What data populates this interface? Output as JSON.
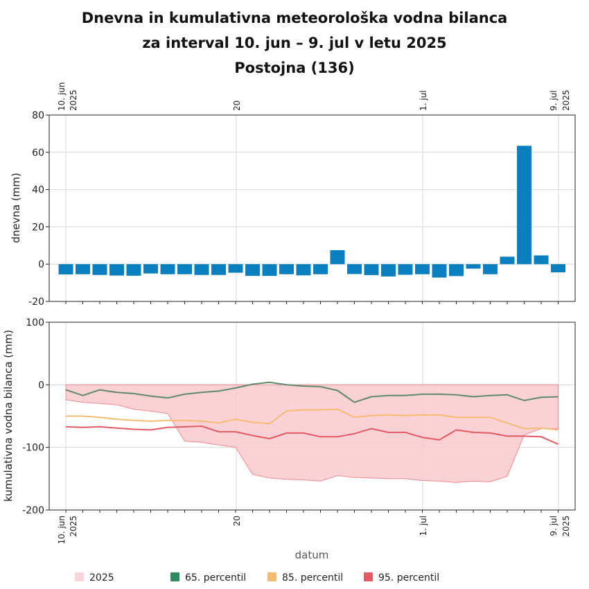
{
  "title": {
    "line1": "Dnevna in kumulativna meteorološka vodna bilanca",
    "line2": "za interval 10. jun – 9. jul v letu 2025",
    "line3": "Postojna (136)"
  },
  "colors": {
    "bar": "#0a7fbf",
    "band_fill": "#f9c9cd",
    "band_line": "#f08a92",
    "p65": "#5e8a6b",
    "p85": "#f6bb73",
    "p95": "#e45a62",
    "legend_2025": "#fbd5d9",
    "legend_p65": "#2e8b60"
  },
  "top_dates": {
    "d1": "10. jun",
    "d1_year": "2025",
    "d2": "20",
    "d3": "1. jul",
    "d4": "9. jul",
    "d4_year": "2025"
  },
  "bottom_dates": {
    "d1": "10. jun",
    "d1_year": "2025",
    "d2": "20",
    "d3": "1. jul",
    "d4": "9. jul",
    "d4_year": "2025"
  },
  "xaxis_title": "datum",
  "legend": {
    "item1": "2025",
    "item2": "65. percentil",
    "item3": "85. percentil",
    "item4": "95. percentil"
  },
  "chart_data": [
    {
      "type": "bar",
      "ylabel": "dnevna (mm)",
      "ylim": [
        -20,
        80
      ],
      "yticks": [
        "80",
        "60",
        "40",
        "20",
        "0",
        "-20"
      ],
      "grid": true,
      "x": [
        "2025-06-10",
        "2025-06-11",
        "2025-06-12",
        "2025-06-13",
        "2025-06-14",
        "2025-06-15",
        "2025-06-16",
        "2025-06-17",
        "2025-06-18",
        "2025-06-19",
        "2025-06-20",
        "2025-06-21",
        "2025-06-22",
        "2025-06-23",
        "2025-06-24",
        "2025-06-25",
        "2025-06-26",
        "2025-06-27",
        "2025-06-28",
        "2025-06-29",
        "2025-06-30",
        "2025-07-01",
        "2025-07-02",
        "2025-07-03",
        "2025-07-04",
        "2025-07-05",
        "2025-07-06",
        "2025-07-07",
        "2025-07-08",
        "2025-07-09"
      ],
      "values": [
        -5.5,
        -5.4,
        -5.8,
        -6.1,
        -6.2,
        -5.0,
        -5.4,
        -5.4,
        -5.8,
        -5.8,
        -4.6,
        -6.3,
        -6.3,
        -5.4,
        -6.0,
        -5.4,
        7.5,
        -5.3,
        -5.9,
        -6.6,
        -5.7,
        -5.4,
        -7.2,
        -6.4,
        -2.4,
        -5.4,
        4.0,
        63.5,
        4.7,
        -4.4
      ]
    },
    {
      "type": "line",
      "ylabel": "kumulativna vodna bilanca (mm)",
      "ylim": [
        -200,
        100
      ],
      "yticks": [
        "100",
        "0",
        "-100",
        "-200"
      ],
      "grid": true,
      "x": [
        "2025-06-10",
        "2025-06-11",
        "2025-06-12",
        "2025-06-13",
        "2025-06-14",
        "2025-06-15",
        "2025-06-16",
        "2025-06-17",
        "2025-06-18",
        "2025-06-19",
        "2025-06-20",
        "2025-06-21",
        "2025-06-22",
        "2025-06-23",
        "2025-06-24",
        "2025-06-25",
        "2025-06-26",
        "2025-06-27",
        "2025-06-28",
        "2025-06-29",
        "2025-06-30",
        "2025-07-01",
        "2025-07-02",
        "2025-07-03",
        "2025-07-04",
        "2025-07-05",
        "2025-07-06",
        "2025-07-07",
        "2025-07-08",
        "2025-07-09"
      ],
      "series": [
        {
          "name": "2025",
          "type": "area",
          "values": [
            -24,
            -28,
            -30,
            -32,
            -39,
            -42,
            -46,
            -90,
            -92,
            -96,
            -100,
            -143,
            -149,
            -151,
            -152,
            -154,
            -145,
            -148,
            -149,
            -150,
            -150,
            -153,
            -154,
            -156,
            -154,
            -155,
            -146,
            -80,
            -70,
            -70
          ]
        },
        {
          "name": "65. percentil",
          "values": [
            -8,
            -17,
            -8,
            -12,
            -14,
            -18,
            -21,
            -15,
            -12,
            -10,
            -5,
            1,
            4,
            0,
            -2,
            -3,
            -9,
            -28,
            -19,
            -17,
            -17,
            -15,
            -15,
            -16,
            -19,
            -17,
            -16,
            -25,
            -20,
            -19
          ]
        },
        {
          "name": "85. percentil",
          "values": [
            -50,
            -50,
            -52,
            -55,
            -57,
            -58,
            -57,
            -57,
            -58,
            -61,
            -55,
            -60,
            -62,
            -42,
            -40,
            -40,
            -39,
            -52,
            -49,
            -48,
            -49,
            -48,
            -48,
            -52,
            -52,
            -52,
            -61,
            -70,
            -69,
            -72
          ]
        },
        {
          "name": "95. percentil",
          "values": [
            -67,
            -68,
            -67,
            -69,
            -71,
            -72,
            -68,
            -67,
            -66,
            -75,
            -75,
            -81,
            -86,
            -77,
            -77,
            -83,
            -83,
            -78,
            -70,
            -76,
            -76,
            -84,
            -88,
            -72,
            -76,
            -77,
            -82,
            -82,
            -83,
            -95
          ]
        }
      ]
    }
  ]
}
